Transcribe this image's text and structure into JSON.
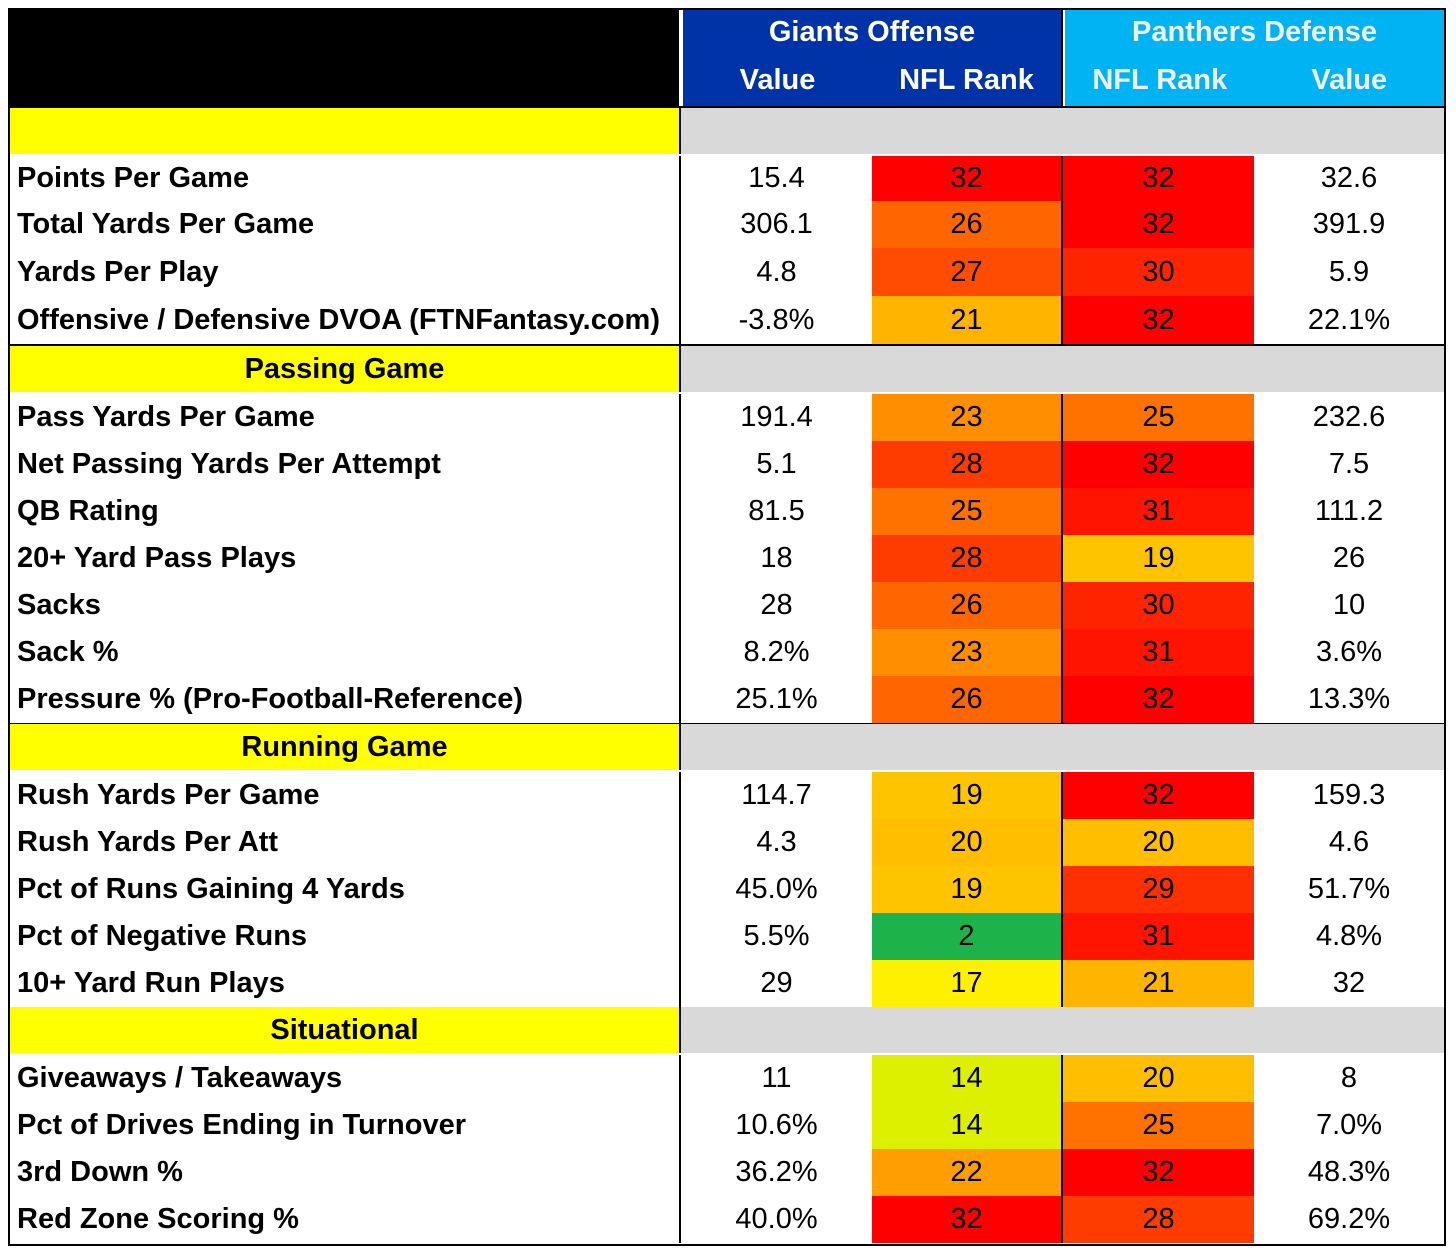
{
  "header": {
    "offense_title": "Giants Offense",
    "defense_title": "Panthers Defense",
    "offense_value_label": "Value",
    "offense_rank_label": "NFL Rank",
    "defense_rank_label": "NFL Rank",
    "defense_value_label": "Value"
  },
  "colors": {
    "header_offense_bg": "#0033a8",
    "header_defense_bg": "#00b4f4",
    "section_label_bg": "#ffff00",
    "section_fill_bg": "#d9d9d9",
    "rank_scale": {
      "2": "#1db34a",
      "14": "#dcf000",
      "17": "#fff000",
      "19": "#ffc400",
      "20": "#ffbe00",
      "21": "#ffb400",
      "22": "#ff9e00",
      "23": "#ff8e00",
      "25": "#ff7200",
      "26": "#ff6600",
      "27": "#ff4c00",
      "28": "#ff3c00",
      "29": "#ff3000",
      "30": "#ff2400",
      "31": "#ff1400",
      "32": "#ff0000"
    }
  },
  "sections": [
    {
      "title": "",
      "rows": [
        {
          "label": "Points Per Game",
          "off_value": "15.4",
          "off_rank": "32",
          "def_rank": "32",
          "def_value": "32.6"
        },
        {
          "label": "Total Yards Per Game",
          "off_value": "306.1",
          "off_rank": "26",
          "def_rank": "32",
          "def_value": "391.9"
        },
        {
          "label": "Yards Per Play",
          "off_value": "4.8",
          "off_rank": "27",
          "def_rank": "30",
          "def_value": "5.9"
        },
        {
          "label": "Offensive / Defensive DVOA (FTNFantasy.com)",
          "off_value": "-3.8%",
          "off_rank": "21",
          "def_rank": "32",
          "def_value": "22.1%"
        }
      ]
    },
    {
      "title": "Passing Game",
      "rows": [
        {
          "label": "Pass Yards Per Game",
          "off_value": "191.4",
          "off_rank": "23",
          "def_rank": "25",
          "def_value": "232.6"
        },
        {
          "label": "Net Passing Yards Per Attempt",
          "off_value": "5.1",
          "off_rank": "28",
          "def_rank": "32",
          "def_value": "7.5"
        },
        {
          "label": "QB Rating",
          "off_value": "81.5",
          "off_rank": "25",
          "def_rank": "31",
          "def_value": "111.2"
        },
        {
          "label": "20+ Yard Pass Plays",
          "off_value": "18",
          "off_rank": "28",
          "def_rank": "19",
          "def_value": "26"
        },
        {
          "label": "Sacks",
          "off_value": "28",
          "off_rank": "26",
          "def_rank": "30",
          "def_value": "10"
        },
        {
          "label": "Sack %",
          "off_value": "8.2%",
          "off_rank": "23",
          "def_rank": "31",
          "def_value": "3.6%"
        },
        {
          "label": "Pressure % (Pro-Football-Reference)",
          "off_value": "25.1%",
          "off_rank": "26",
          "def_rank": "32",
          "def_value": "13.3%"
        }
      ]
    },
    {
      "title": "Running Game",
      "rows": [
        {
          "label": "Rush Yards Per Game",
          "off_value": "114.7",
          "off_rank": "19",
          "def_rank": "32",
          "def_value": "159.3"
        },
        {
          "label": "Rush Yards Per Att",
          "off_value": "4.3",
          "off_rank": "20",
          "def_rank": "20",
          "def_value": "4.6"
        },
        {
          "label": "Pct of Runs Gaining 4 Yards",
          "off_value": "45.0%",
          "off_rank": "19",
          "def_rank": "29",
          "def_value": "51.7%"
        },
        {
          "label": "Pct of Negative Runs",
          "off_value": "5.5%",
          "off_rank": "2",
          "def_rank": "31",
          "def_value": "4.8%"
        },
        {
          "label": "10+ Yard Run Plays",
          "off_value": "29",
          "off_rank": "17",
          "def_rank": "21",
          "def_value": "32"
        }
      ]
    },
    {
      "title": "Situational",
      "rows": [
        {
          "label": "Giveaways / Takeaways",
          "off_value": "11",
          "off_rank": "14",
          "def_rank": "20",
          "def_value": "8"
        },
        {
          "label": "Pct of Drives Ending in Turnover",
          "off_value": "10.6%",
          "off_rank": "14",
          "def_rank": "25",
          "def_value": "7.0%"
        },
        {
          "label": "3rd Down %",
          "off_value": "36.2%",
          "off_rank": "22",
          "def_rank": "32",
          "def_value": "48.3%"
        },
        {
          "label": "Red Zone Scoring %",
          "off_value": "40.0%",
          "off_rank": "32",
          "def_rank": "28",
          "def_value": "69.2%"
        }
      ]
    }
  ]
}
